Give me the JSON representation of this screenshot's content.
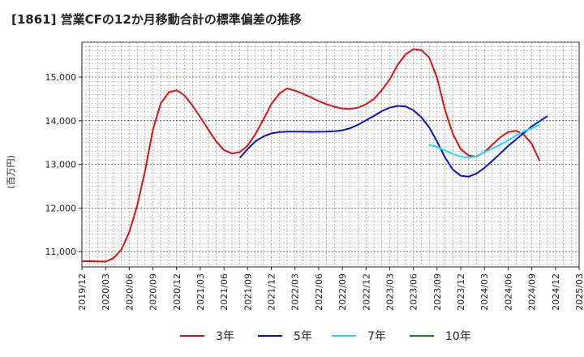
{
  "chart_data": {
    "type": "line",
    "title": "[1861]  営業CFの12か月移動合計の標準偏差の推移",
    "ylabel": "(百万円)",
    "xlabel": "",
    "ylim": [
      10650,
      15800
    ],
    "yticks": [
      11000,
      12000,
      13000,
      14000,
      15000
    ],
    "ytick_labels": [
      "11,000",
      "12,000",
      "13,000",
      "14,000",
      "15,000"
    ],
    "x_start": "2019-12",
    "x_end": "2025-03",
    "xtick_labels": [
      "2019/12",
      "2020/03",
      "2020/06",
      "2020/09",
      "2020/12",
      "2021/03",
      "2021/06",
      "2021/09",
      "2021/12",
      "2022/03",
      "2022/06",
      "2022/09",
      "2022/12",
      "2023/03",
      "2023/06",
      "2023/09",
      "2023/12",
      "2024/03",
      "2024/06",
      "2024/09",
      "2024/12",
      "2025/03"
    ],
    "grid": true,
    "legend_position": "bottom",
    "series": [
      {
        "name": "3年",
        "color": "#dd1111",
        "start": "2019-12",
        "values": [
          10780,
          10780,
          10775,
          10770,
          10850,
          11050,
          11450,
          12050,
          12850,
          13800,
          14400,
          14650,
          14700,
          14580,
          14350,
          14080,
          13800,
          13530,
          13330,
          13250,
          13280,
          13430,
          13700,
          14030,
          14380,
          14620,
          14740,
          14690,
          14620,
          14540,
          14450,
          14380,
          14320,
          14280,
          14270,
          14300,
          14380,
          14500,
          14700,
          14950,
          15280,
          15520,
          15640,
          15620,
          15450,
          14980,
          14250,
          13700,
          13350,
          13200,
          13180,
          13280,
          13450,
          13620,
          13740,
          13770,
          13680,
          13470,
          13080
        ]
      },
      {
        "name": "5年",
        "color": "#0a12c8",
        "start": "2021-08",
        "values": [
          13150,
          13350,
          13530,
          13640,
          13710,
          13740,
          13750,
          13750,
          13750,
          13745,
          13748,
          13752,
          13760,
          13780,
          13830,
          13910,
          14010,
          14110,
          14220,
          14300,
          14340,
          14330,
          14240,
          14080,
          13850,
          13520,
          13160,
          12880,
          12740,
          12720,
          12790,
          12920,
          13080,
          13250,
          13420,
          13570,
          13720,
          13870,
          13990,
          14110
        ]
      },
      {
        "name": "7年",
        "color": "#22ddee",
        "start": "2023-08",
        "values": [
          13450,
          13400,
          13320,
          13240,
          13180,
          13150,
          13190,
          13280,
          13360,
          13450,
          13550,
          13660,
          13760,
          13830,
          13900
        ]
      },
      {
        "name": "10年",
        "color": "#118811",
        "start": "",
        "values": []
      }
    ]
  }
}
